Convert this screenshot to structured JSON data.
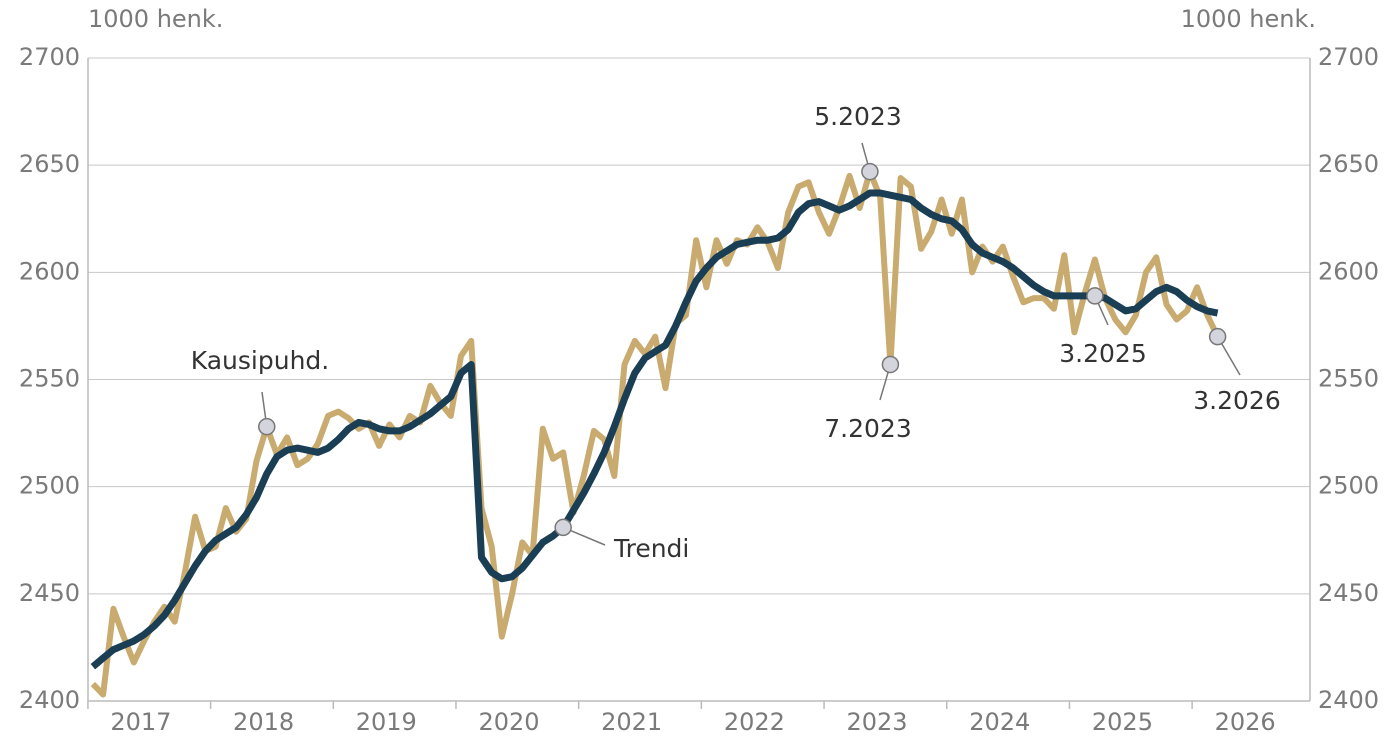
{
  "chart_data": {
    "type": "line",
    "y_label": "1000 henk.",
    "y2_label": "1000 henk.",
    "xlim": [
      2016.96,
      2026.92
    ],
    "xticks": [
      {
        "value": 2017,
        "label": "2017"
      },
      {
        "value": 2018,
        "label": "2018"
      },
      {
        "value": 2019,
        "label": "2019"
      },
      {
        "value": 2020,
        "label": "2020"
      },
      {
        "value": 2021,
        "label": "2021"
      },
      {
        "value": 2022,
        "label": "2022"
      },
      {
        "value": 2023,
        "label": "2023"
      },
      {
        "value": 2024,
        "label": "2024"
      },
      {
        "value": 2025,
        "label": "2025"
      },
      {
        "value": 2026,
        "label": "2026"
      }
    ],
    "ylim": [
      2400,
      2700
    ],
    "yticks": [
      2400,
      2450,
      2500,
      2550,
      2600,
      2650,
      2700
    ],
    "y2lim": [
      2400,
      2700
    ],
    "y2ticks": [
      2400,
      2450,
      2500,
      2550,
      2600,
      2650,
      2700
    ],
    "grid": true,
    "x": [
      2017,
      2017.083,
      2017.167,
      2017.25,
      2017.333,
      2017.417,
      2017.5,
      2017.583,
      2017.667,
      2017.75,
      2017.833,
      2017.917,
      2018,
      2018.083,
      2018.167,
      2018.25,
      2018.333,
      2018.417,
      2018.5,
      2018.583,
      2018.667,
      2018.75,
      2018.833,
      2018.917,
      2019,
      2019.083,
      2019.167,
      2019.25,
      2019.333,
      2019.417,
      2019.5,
      2019.583,
      2019.667,
      2019.75,
      2019.833,
      2019.917,
      2020,
      2020.083,
      2020.167,
      2020.25,
      2020.333,
      2020.417,
      2020.5,
      2020.583,
      2020.667,
      2020.75,
      2020.833,
      2020.917,
      2021,
      2021.083,
      2021.167,
      2021.25,
      2021.333,
      2021.417,
      2021.5,
      2021.583,
      2021.667,
      2021.75,
      2021.833,
      2021.917,
      2022,
      2022.083,
      2022.167,
      2022.25,
      2022.333,
      2022.417,
      2022.5,
      2022.583,
      2022.667,
      2022.75,
      2022.833,
      2022.917,
      2023,
      2023.083,
      2023.167,
      2023.25,
      2023.333,
      2023.417,
      2023.5,
      2023.583,
      2023.667,
      2023.75,
      2023.833,
      2023.917,
      2024,
      2024.083,
      2024.167,
      2024.25,
      2024.333,
      2024.417,
      2024.5,
      2024.583,
      2024.667,
      2024.75,
      2024.833,
      2024.917,
      2025,
      2025.083,
      2025.167,
      2025.25,
      2025.333,
      2025.417,
      2025.5,
      2025.583,
      2025.667,
      2025.75,
      2025.833,
      2025.917,
      2026,
      2026.083,
      2026.167
    ],
    "series": [
      {
        "name": "Kausipuhd.",
        "color": "#c9ab70",
        "values": [
          2408,
          2403,
          2443,
          2430,
          2418,
          2428,
          2437,
          2444,
          2437,
          2460,
          2486,
          2470,
          2472,
          2490,
          2479,
          2485,
          2512,
          2528,
          2515,
          2523,
          2510,
          2513,
          2520,
          2533,
          2535,
          2532,
          2527,
          2530,
          2519,
          2529,
          2523,
          2533,
          2530,
          2547,
          2539,
          2533,
          2561,
          2568,
          2490,
          2472,
          2430,
          2450,
          2474,
          2468,
          2527,
          2513,
          2516,
          2488,
          2505,
          2526,
          2522,
          2505,
          2557,
          2568,
          2562,
          2570,
          2546,
          2576,
          2580,
          2615,
          2593,
          2615,
          2604,
          2615,
          2613,
          2621,
          2614,
          2602,
          2628,
          2640,
          2642,
          2628,
          2618,
          2630,
          2645,
          2630,
          2647,
          2635,
          2557,
          2644,
          2640,
          2611,
          2619,
          2634,
          2618,
          2634,
          2600,
          2612,
          2605,
          2612,
          2598,
          2586,
          2588,
          2588,
          2583,
          2608,
          2572,
          2590,
          2606,
          2588,
          2578,
          2572,
          2580,
          2600,
          2607,
          2585,
          2578,
          2582,
          2593,
          2580,
          2570
        ]
      },
      {
        "name": "Trendi",
        "color": "#1a3e54",
        "values": [
          2416,
          2420,
          2424,
          2426,
          2428,
          2431,
          2435,
          2440,
          2447,
          2455,
          2463,
          2470,
          2475,
          2478,
          2481,
          2487,
          2495,
          2506,
          2514,
          2517,
          2518,
          2517,
          2516,
          2518,
          2522,
          2527,
          2530,
          2529,
          2527,
          2526,
          2526,
          2528,
          2531,
          2534,
          2538,
          2542,
          2553,
          2557,
          2467,
          2460,
          2457,
          2458,
          2462,
          2468,
          2474,
          2477,
          2481,
          2489,
          2497,
          2506,
          2516,
          2528,
          2541,
          2553,
          2560,
          2563,
          2566,
          2575,
          2586,
          2596,
          2602,
          2607,
          2610,
          2613,
          2614,
          2615,
          2615,
          2616,
          2620,
          2628,
          2632,
          2633,
          2631,
          2629,
          2631,
          2634,
          2637,
          2637,
          2636,
          2635,
          2634,
          2630,
          2627,
          2625,
          2624,
          2620,
          2613,
          2609,
          2607,
          2605,
          2602,
          2598,
          2594,
          2591,
          2589,
          2589,
          2589,
          2589,
          2589,
          2588,
          2585,
          2582,
          2583,
          2587,
          2591,
          2593,
          2591,
          2587,
          2584,
          2582,
          2581
        ]
      }
    ],
    "annotations": [
      "5.2023",
      "7.2023",
      "3.2025",
      "3.2026"
    ]
  }
}
